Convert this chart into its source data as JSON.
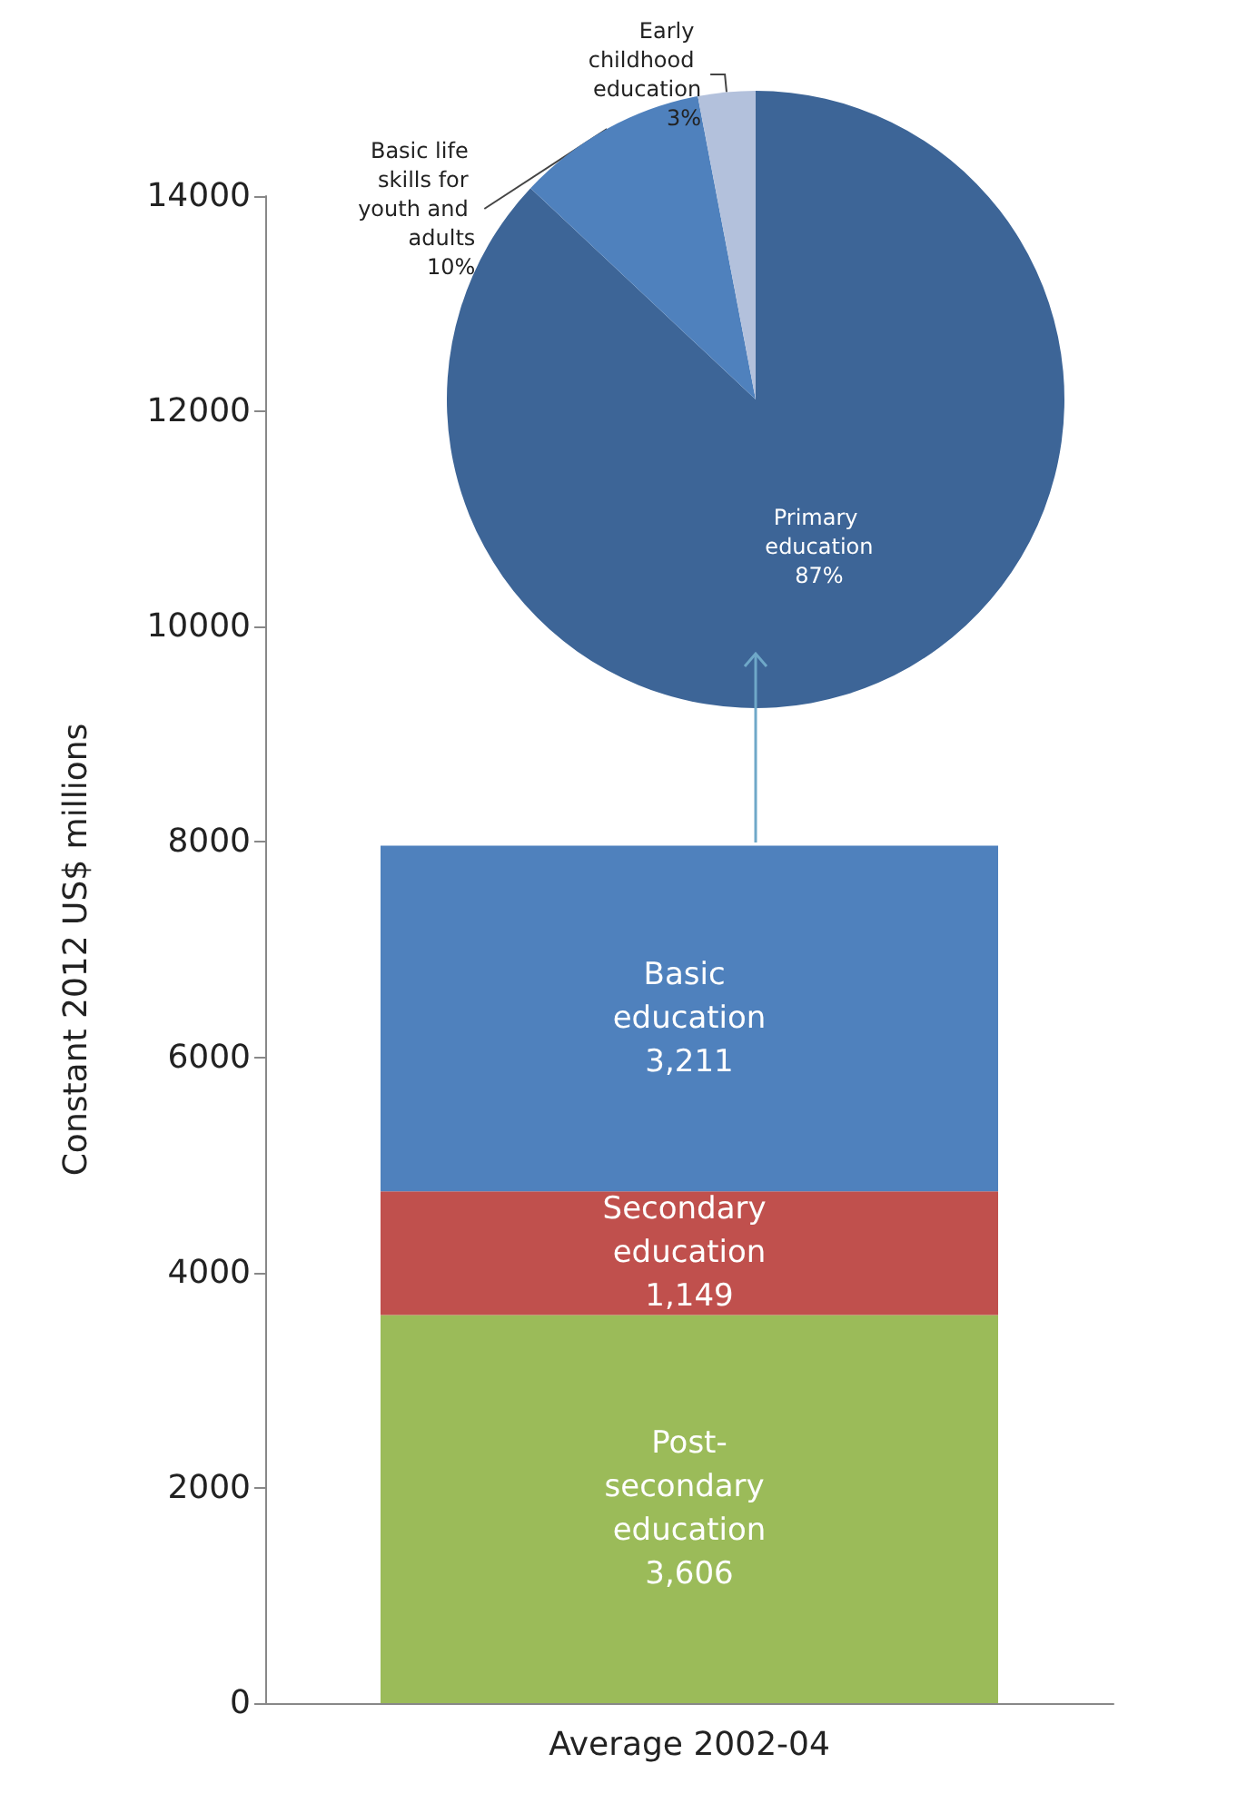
{
  "chart_data": [
    {
      "type": "bar",
      "stacked": true,
      "categories": [
        "Average 2002-04"
      ],
      "ylabel": "Constant 2012 US$ millions",
      "ylim": [
        0,
        14000
      ],
      "yticks": [
        0,
        2000,
        4000,
        6000,
        8000,
        10000,
        12000,
        14000
      ],
      "grid": false,
      "series": [
        {
          "name": "Post-secondary education",
          "color": "#9bbb59",
          "values": [
            3606
          ],
          "value_labels": [
            "3,606"
          ]
        },
        {
          "name": "Secondary education",
          "color": "#c0504d",
          "values": [
            1149
          ],
          "value_labels": [
            "1,149"
          ]
        },
        {
          "name": "Basic education",
          "color": "#4f81bd",
          "values": [
            3211
          ],
          "value_labels": [
            "3,211"
          ]
        }
      ]
    },
    {
      "type": "pie",
      "categories": [
        "Primary education",
        "Basic life skills for youth and adults",
        "Early childhood education"
      ],
      "values": [
        87,
        10,
        3
      ],
      "value_labels": [
        "87%",
        "10%",
        "3%"
      ],
      "colors": [
        "#3d6597",
        "#4f81bd",
        "#b3c1dc"
      ]
    }
  ]
}
